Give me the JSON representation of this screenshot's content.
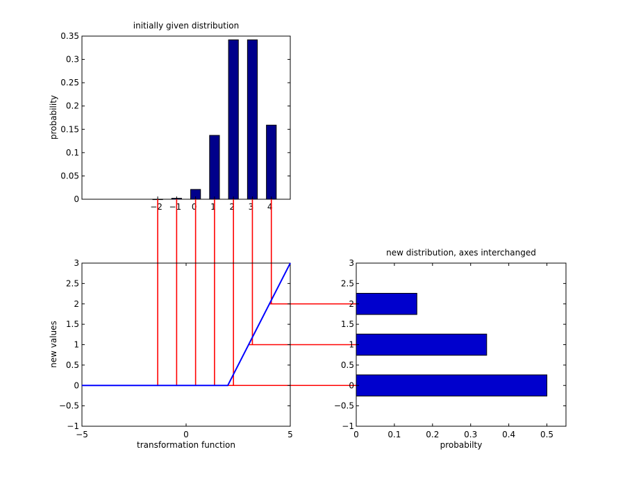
{
  "colors": {
    "bar_top": "#00008b",
    "bar_right": "#0000cd",
    "transform_line": "#0000ff",
    "connector": "#ff0000"
  },
  "chart_data": [
    {
      "type": "bar",
      "title": "initially given distribution",
      "xlabel": "",
      "ylabel": "probability",
      "categories": [
        -2,
        -1,
        0,
        1,
        2,
        3,
        4
      ],
      "values": [
        0.0001,
        0.002,
        0.021,
        0.137,
        0.342,
        0.342,
        0.159
      ],
      "xlim": [
        -6,
        5
      ],
      "ylim": [
        0,
        0.35
      ],
      "xticks": [
        "-2",
        "-1",
        "0",
        "1",
        "2",
        "3",
        "4"
      ],
      "yticks": [
        "0",
        "0.05",
        "0.1",
        "0.15",
        "0.2",
        "0.25",
        "0.3",
        "0.35"
      ],
      "grid": false
    },
    {
      "type": "line",
      "title": "",
      "xlabel": "transformation function",
      "ylabel": "new values",
      "x": [
        -5,
        2,
        5
      ],
      "y": [
        0,
        0,
        3
      ],
      "xlim": [
        -5,
        5
      ],
      "ylim": [
        -1,
        3
      ],
      "xticks": [
        "-5",
        "0",
        "5"
      ],
      "yticks": [
        "-1",
        "-0.5",
        "0",
        "0.5",
        "1",
        "1.5",
        "2",
        "2.5",
        "3"
      ],
      "grid": false
    },
    {
      "type": "bar",
      "orientation": "horizontal",
      "title": "new distribution, axes interchanged",
      "xlabel": "probabilty",
      "ylabel": "",
      "categories": [
        0,
        1,
        2
      ],
      "values": [
        0.5,
        0.342,
        0.159
      ],
      "xlim": [
        0,
        0.55
      ],
      "ylim": [
        -1,
        3
      ],
      "xticks": [
        "0",
        "0.1",
        "0.2",
        "0.3",
        "0.4",
        "0.5"
      ],
      "yticks": [
        "-1",
        "-0.5",
        "0",
        "0.5",
        "1",
        "1.5",
        "2",
        "2.5",
        "3"
      ],
      "grid": false
    }
  ],
  "connectors": [
    {
      "x": -2,
      "y": 0
    },
    {
      "x": -1,
      "y": 0
    },
    {
      "x": 0,
      "y": 0
    },
    {
      "x": 1,
      "y": 0
    },
    {
      "x": 2,
      "y": 0
    },
    {
      "x": 3,
      "y": 1
    },
    {
      "x": 4,
      "y": 2
    }
  ]
}
